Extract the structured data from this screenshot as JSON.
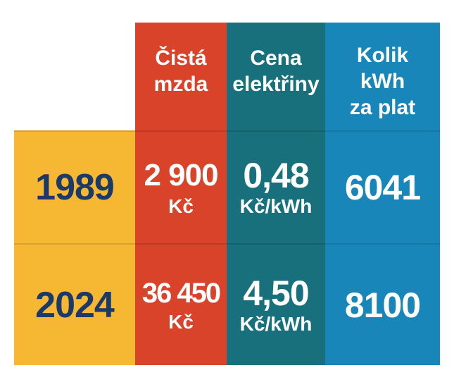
{
  "table": {
    "headers": [
      [
        "Čistá",
        "mzda"
      ],
      [
        "Cena",
        "elektřiny"
      ],
      [
        "Kolik",
        "kWh",
        "za plat"
      ]
    ],
    "rows": [
      {
        "year": "1989",
        "wage": "2 900",
        "wage_unit": "Kč",
        "price": "0,48",
        "price_unit": "Kč/kWh",
        "kwh": "6041"
      },
      {
        "year": "2024",
        "wage": "36 450",
        "wage_unit": "Kč",
        "price": "4,50",
        "price_unit": "Kč/kWh",
        "kwh": "8100"
      }
    ]
  }
}
